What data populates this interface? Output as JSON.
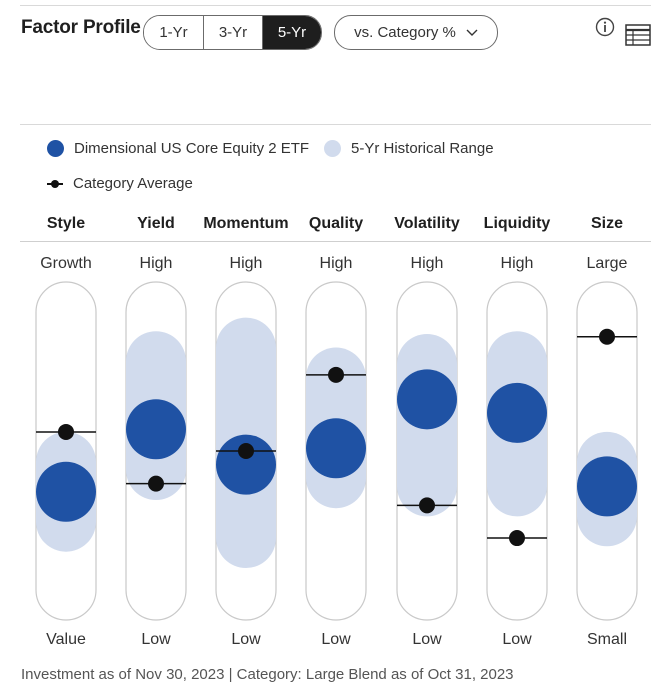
{
  "header": {
    "title": "Factor Profile",
    "periods": [
      "1-Yr",
      "3-Yr",
      "5-Yr"
    ],
    "active_period": "5-Yr",
    "comparison_dropdown": "vs. Category %"
  },
  "legend": {
    "fund": "Dimensional US Core Equity 2 ETF",
    "range": "5-Yr Historical Range",
    "average": "Category Average"
  },
  "colors": {
    "fund": "#1f52a4",
    "range": "#d1dbed",
    "average": "#111111",
    "track_border": "#c9c9c9",
    "active_tab_bg": "#1e1e1e"
  },
  "chart_data": {
    "type": "factor-profile",
    "title": "Factor Profile",
    "period": "5-Yr",
    "value_scale": "percentile (0 = bottom label, 100 = top label)",
    "ylim": [
      0,
      100
    ],
    "factors": [
      {
        "name": "Style",
        "high_label": "Growth",
        "low_label": "Value",
        "fund": 35,
        "range": [
          24,
          46
        ],
        "category_avg": 57
      },
      {
        "name": "Yield",
        "high_label": "High",
        "low_label": "Low",
        "fund": 58,
        "range": [
          43,
          83
        ],
        "category_avg": 38
      },
      {
        "name": "Momentum",
        "high_label": "High",
        "low_label": "Low",
        "fund": 45,
        "range": [
          18,
          88
        ],
        "category_avg": 50
      },
      {
        "name": "Quality",
        "high_label": "High",
        "low_label": "Low",
        "fund": 51,
        "range": [
          40,
          77
        ],
        "category_avg": 78
      },
      {
        "name": "Volatility",
        "high_label": "High",
        "low_label": "Low",
        "fund": 69,
        "range": [
          37,
          82
        ],
        "category_avg": 30
      },
      {
        "name": "Liquidity",
        "high_label": "High",
        "low_label": "Low",
        "fund": 64,
        "range": [
          37,
          83
        ],
        "category_avg": 18
      },
      {
        "name": "Size",
        "high_label": "Large",
        "low_label": "Small",
        "fund": 37,
        "range": [
          26,
          46
        ],
        "category_avg": 92
      }
    ]
  },
  "footer": "Investment as of Nov 30, 2023 | Category: Large Blend as of Oct 31, 2023"
}
